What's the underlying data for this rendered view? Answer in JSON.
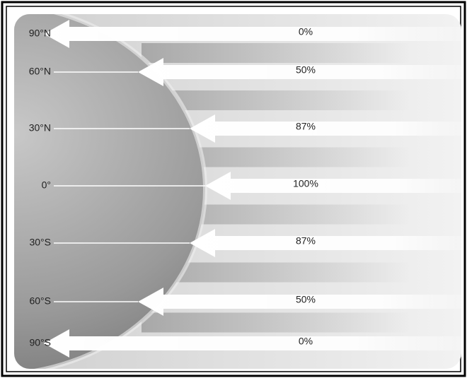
{
  "rows": [
    {
      "latitude": "90°N",
      "intensity": "0%"
    },
    {
      "latitude": "60°N",
      "intensity": "50%"
    },
    {
      "latitude": "30°N",
      "intensity": "87%"
    },
    {
      "latitude": "0°",
      "intensity": "100%"
    },
    {
      "latitude": "30°S",
      "intensity": "87%"
    },
    {
      "latitude": "60°S",
      "intensity": "50%"
    },
    {
      "latitude": "90°S",
      "intensity": "0%"
    }
  ]
}
